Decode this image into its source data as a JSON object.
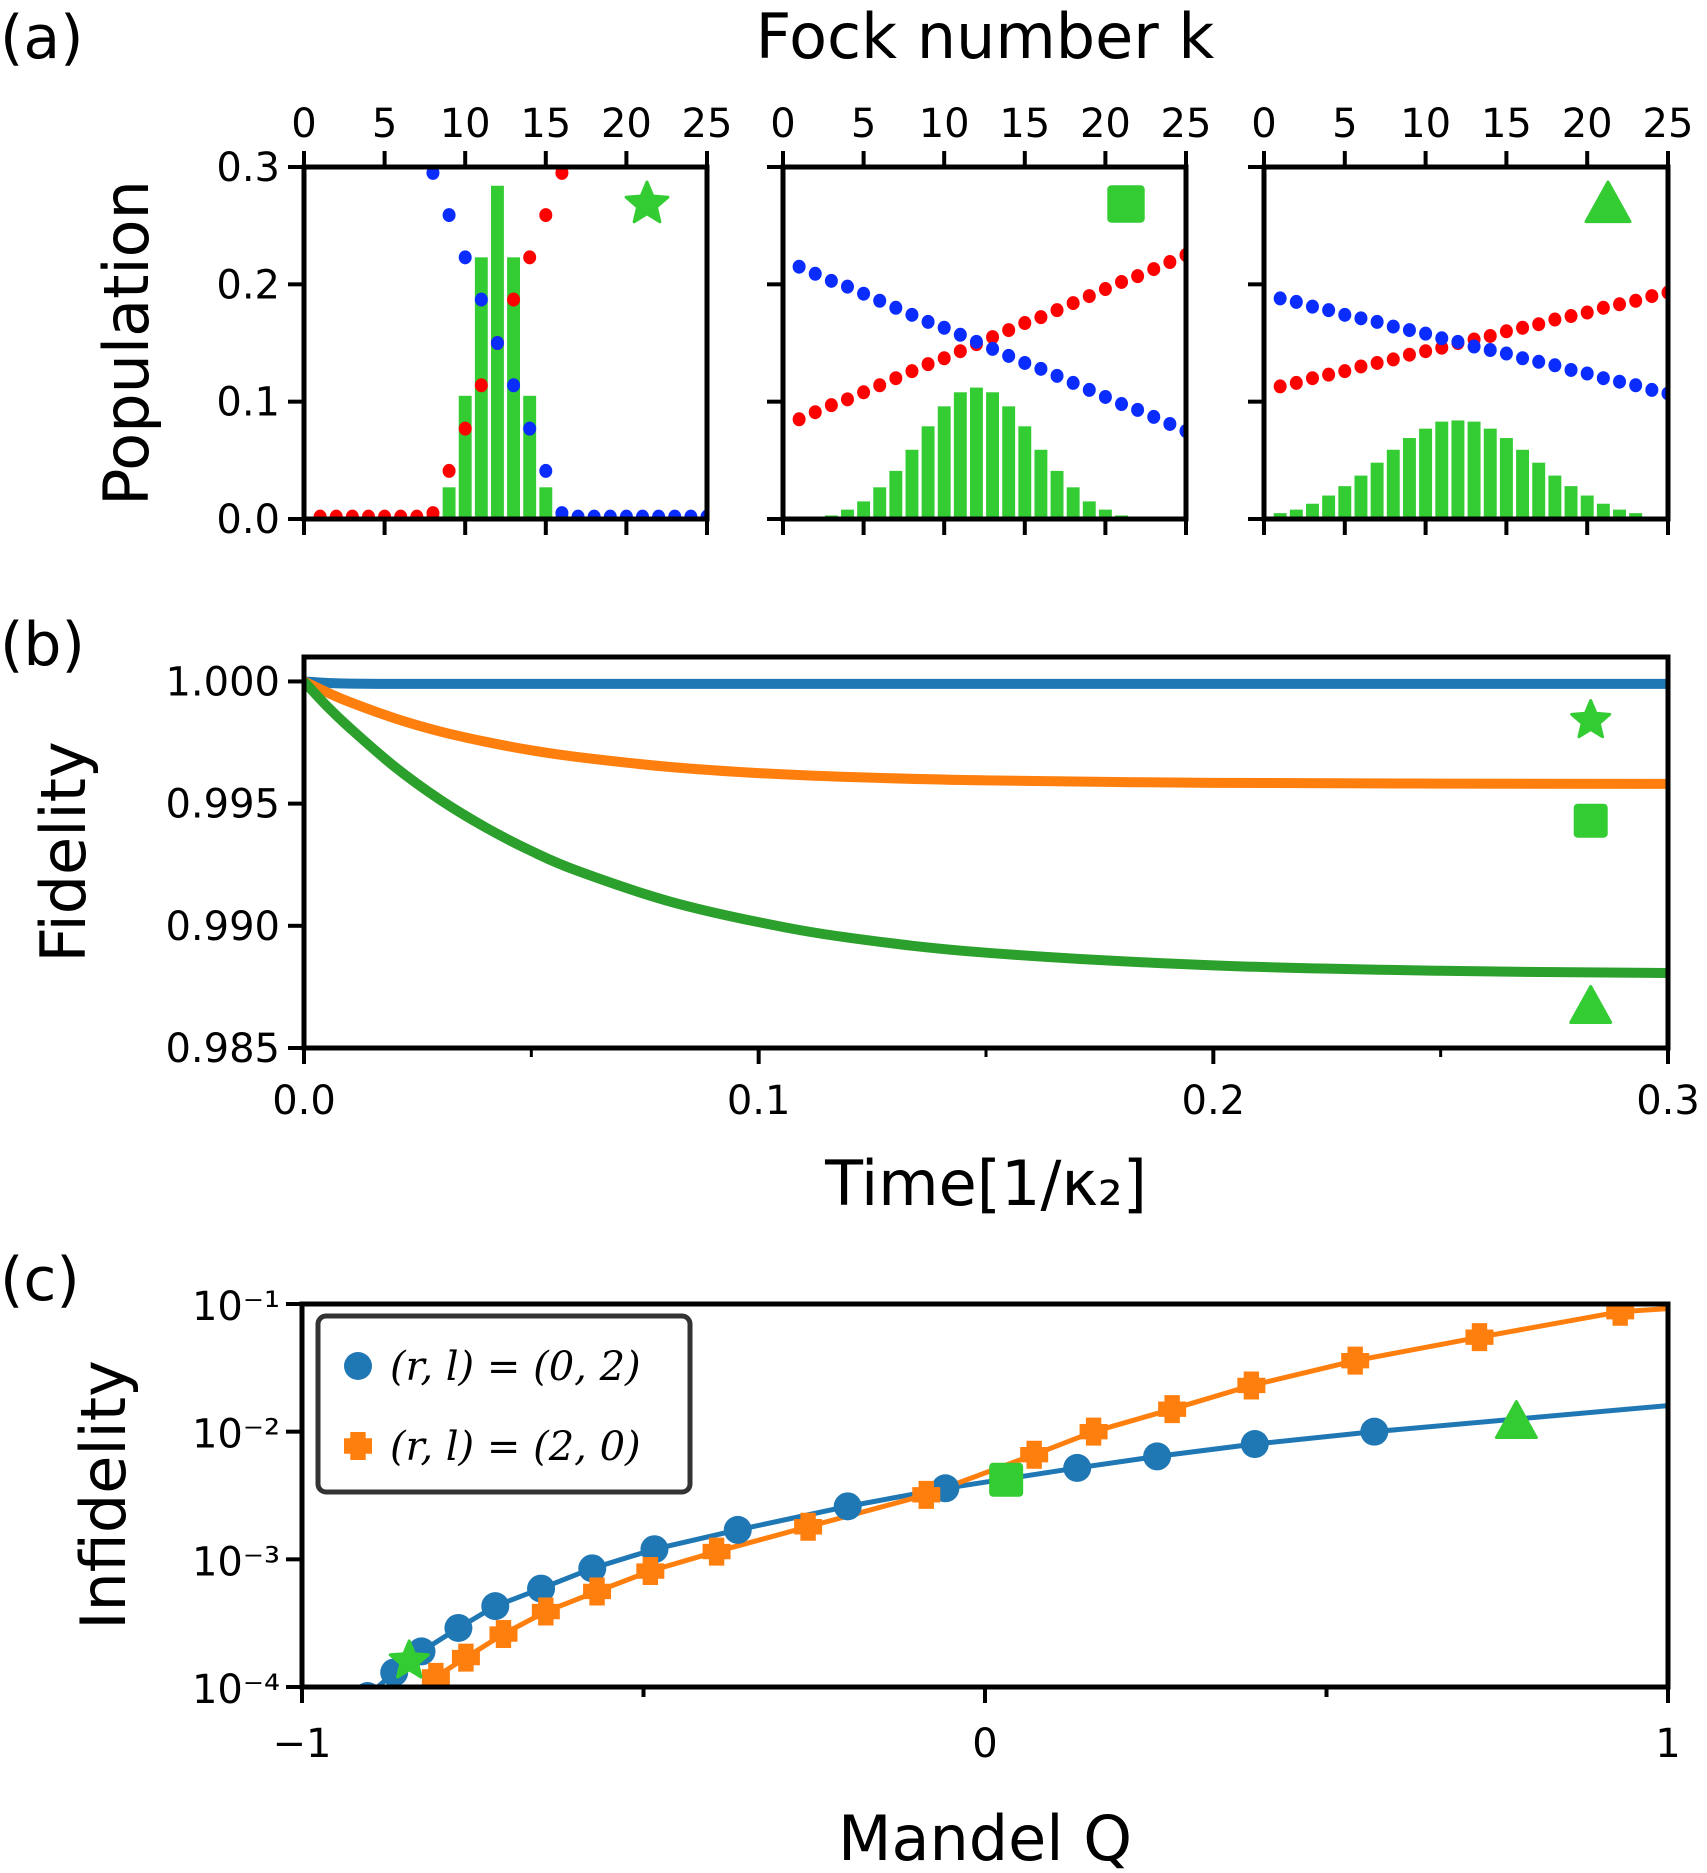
{
  "panel_labels": [
    "(a)",
    "(b)",
    "(c)"
  ],
  "colors": {
    "blue_dots": "#0a2cff",
    "red_dots": "#ff0000",
    "bars": "#33cc33",
    "marker_green": "#33cc33",
    "c0": "#1f77b4",
    "c1": "#ff7f0e",
    "c2": "#2ca02c"
  },
  "chart_data": [
    {
      "id": "a",
      "type": "bar+scatter",
      "xlabel": "Fock number k",
      "ylabel": "Population",
      "xlim": [
        0,
        25
      ],
      "ylim": [
        0,
        0.3
      ],
      "xticks": [
        0,
        5,
        10,
        15,
        20,
        25
      ],
      "yticks": [
        "0.0",
        "0.1",
        "0.2",
        "0.3"
      ],
      "xaxis_position": "top",
      "subplots": [
        {
          "marker": "star",
          "bars_k": [
            0,
            1,
            2,
            3,
            4,
            5,
            6,
            7,
            8,
            9,
            10,
            11,
            12,
            13,
            14,
            15,
            16,
            17,
            18,
            19,
            20,
            21,
            22,
            23,
            24,
            25
          ],
          "bars": [
            0,
            0,
            0,
            0,
            0,
            0,
            0,
            0,
            0.003,
            0.027,
            0.105,
            0.223,
            0.284,
            0.223,
            0.105,
            0.027,
            0.003,
            0,
            0,
            0,
            0,
            0,
            0,
            0,
            0,
            0
          ],
          "dots_k": [
            1,
            2,
            3,
            4,
            5,
            6,
            7,
            8,
            9,
            10,
            11,
            12,
            13,
            14,
            15,
            16,
            17,
            18,
            19,
            20,
            21,
            22,
            23,
            24,
            25
          ],
          "blue": [
            null,
            null,
            null,
            null,
            null,
            null,
            null,
            0.295,
            0.259,
            0.223,
            0.187,
            0.15,
            0.114,
            0.077,
            0.041,
            0.005,
            0.002,
            0.002,
            0.002,
            0.002,
            0.002,
            0.002,
            0.002,
            0.002,
            0.002
          ],
          "red": [
            0.002,
            0.002,
            0.002,
            0.002,
            0.002,
            0.002,
            0.002,
            0.005,
            0.041,
            0.077,
            0.114,
            0.15,
            0.187,
            0.223,
            0.259,
            0.295,
            null,
            null,
            null,
            null,
            null,
            null,
            null,
            null,
            null
          ]
        },
        {
          "marker": "square",
          "bars_k": [
            0,
            1,
            2,
            3,
            4,
            5,
            6,
            7,
            8,
            9,
            10,
            11,
            12,
            13,
            14,
            15,
            16,
            17,
            18,
            19,
            20,
            21,
            22,
            23,
            24,
            25
          ],
          "bars": [
            0,
            0,
            0,
            0.003,
            0.008,
            0.015,
            0.027,
            0.041,
            0.059,
            0.079,
            0.096,
            0.108,
            0.112,
            0.108,
            0.096,
            0.079,
            0.059,
            0.041,
            0.027,
            0.015,
            0.008,
            0.003,
            0.001,
            0,
            0,
            0
          ],
          "dots_k": [
            1,
            2,
            3,
            4,
            5,
            6,
            7,
            8,
            9,
            10,
            11,
            12,
            13,
            14,
            15,
            16,
            17,
            18,
            19,
            20,
            21,
            22,
            23,
            24,
            25
          ],
          "blue": [
            0.215,
            0.209,
            0.203,
            0.198,
            0.192,
            0.186,
            0.18,
            0.174,
            0.168,
            0.163,
            0.157,
            0.151,
            0.145,
            0.139,
            0.133,
            0.128,
            0.122,
            0.116,
            0.11,
            0.104,
            0.098,
            0.093,
            0.087,
            0.081,
            0.075
          ],
          "red": [
            0.085,
            0.091,
            0.097,
            0.102,
            0.108,
            0.114,
            0.12,
            0.126,
            0.132,
            0.137,
            0.143,
            0.149,
            0.155,
            0.161,
            0.167,
            0.172,
            0.178,
            0.184,
            0.19,
            0.196,
            0.202,
            0.207,
            0.213,
            0.219,
            0.225
          ]
        },
        {
          "marker": "triangle",
          "bars_k": [
            0,
            1,
            2,
            3,
            4,
            5,
            6,
            7,
            8,
            9,
            10,
            11,
            12,
            13,
            14,
            15,
            16,
            17,
            18,
            19,
            20,
            21,
            22,
            23,
            24,
            25
          ],
          "bars": [
            0.002,
            0.005,
            0.008,
            0.013,
            0.02,
            0.028,
            0.037,
            0.048,
            0.059,
            0.069,
            0.077,
            0.083,
            0.084,
            0.083,
            0.077,
            0.069,
            0.059,
            0.048,
            0.037,
            0.028,
            0.02,
            0.013,
            0.008,
            0.005,
            0.002,
            0.001
          ],
          "dots_k": [
            1,
            2,
            3,
            4,
            5,
            6,
            7,
            8,
            9,
            10,
            11,
            12,
            13,
            14,
            15,
            16,
            17,
            18,
            19,
            20,
            21,
            22,
            23,
            24,
            25
          ],
          "blue": [
            0.188,
            0.185,
            0.181,
            0.178,
            0.174,
            0.171,
            0.168,
            0.164,
            0.161,
            0.158,
            0.154,
            0.151,
            0.147,
            0.144,
            0.141,
            0.137,
            0.134,
            0.131,
            0.127,
            0.124,
            0.12,
            0.117,
            0.114,
            0.11,
            0.107
          ],
          "red": [
            0.113,
            0.116,
            0.12,
            0.123,
            0.126,
            0.13,
            0.133,
            0.136,
            0.14,
            0.143,
            0.146,
            0.15,
            0.153,
            0.156,
            0.16,
            0.163,
            0.166,
            0.17,
            0.173,
            0.176,
            0.18,
            0.183,
            0.186,
            0.19,
            0.193
          ]
        }
      ]
    },
    {
      "id": "b",
      "type": "line",
      "xlabel": "Time[1/κ₂]",
      "ylabel": "Fidelity",
      "xlim": [
        0,
        0.3
      ],
      "ylim": [
        0.985,
        1.001
      ],
      "xticks": [
        "0.0",
        "0.1",
        "0.2",
        "0.3"
      ],
      "yticks": [
        "0.985",
        "0.990",
        "0.995",
        "1.000"
      ],
      "t": [
        0,
        0.005,
        0.01,
        0.02,
        0.03,
        0.04,
        0.05,
        0.06,
        0.08,
        0.1,
        0.12,
        0.15,
        0.2,
        0.25,
        0.3
      ],
      "series": [
        {
          "color": "#1f77b4",
          "values": [
            1,
            0.99994,
            0.99991,
            0.9999,
            0.9999,
            0.9999,
            0.9999,
            0.9999,
            0.9999,
            0.9999,
            0.9999,
            0.9999,
            0.9999,
            0.9999,
            0.9999
          ]
        },
        {
          "color": "#ff7f0e",
          "values": [
            1,
            0.99956,
            0.99916,
            0.99849,
            0.99795,
            0.99753,
            0.99718,
            0.99691,
            0.99651,
            0.99625,
            0.99609,
            0.99595,
            0.99585,
            0.99582,
            0.99581
          ]
        },
        {
          "color": "#2ca02c",
          "values": [
            1,
            0.999,
            0.99811,
            0.9965,
            0.99515,
            0.99402,
            0.99306,
            0.99226,
            0.99102,
            0.99015,
            0.98951,
            0.9889,
            0.98838,
            0.98816,
            0.98807
          ]
        }
      ],
      "markers": [
        {
          "shape": "star",
          "x": 0.283,
          "y": 0.9984
        },
        {
          "shape": "square",
          "x": 0.283,
          "y": 0.9943
        },
        {
          "shape": "triangle",
          "x": 0.283,
          "y": 0.9867
        }
      ]
    },
    {
      "id": "c",
      "type": "line+scatter",
      "xlabel": "Mandel Q",
      "ylabel": "Infidelity",
      "yscale": "log",
      "xlim": [
        -1,
        1
      ],
      "ylim": [
        0.0001,
        0.1
      ],
      "xticks": [
        "−1",
        "0",
        "1"
      ],
      "yticks": [
        "10⁻⁴",
        "10⁻³",
        "10⁻²",
        "10⁻¹"
      ],
      "legend_position": "top-left",
      "series": [
        {
          "name": "(r, l) = (0, 2)",
          "color": "#1f77b4",
          "marker": "circle",
          "x": [
            -0.904,
            -0.865,
            -0.825,
            -0.771,
            -0.717,
            -0.65,
            -0.575,
            -0.484,
            -0.362,
            -0.201,
            -0.058,
            0.135,
            0.252,
            0.395,
            0.57
          ],
          "y": [
            8.5e-05,
            0.00013,
            0.00019,
            0.00029,
            0.00043,
            0.00059,
            0.00085,
            0.0012,
            0.0017,
            0.0026,
            0.0036,
            0.0052,
            0.0064,
            0.008,
            0.01
          ],
          "line_end": [
            1,
            0.016
          ]
        },
        {
          "name": "(r, l) = (2, 0)",
          "color": "#ff7f0e",
          "marker": "plus",
          "x": [
            -0.804,
            -0.76,
            -0.705,
            -0.643,
            -0.568,
            -0.49,
            -0.393,
            -0.259,
            -0.086,
            0.072,
            0.159,
            0.274,
            0.39,
            0.542,
            0.724,
            0.93
          ],
          "y": [
            0.00012,
            0.00017,
            0.00026,
            0.00039,
            0.00056,
            0.00081,
            0.00115,
            0.0018,
            0.0032,
            0.0066,
            0.01,
            0.015,
            0.023,
            0.036,
            0.055,
            0.087
          ],
          "line_end": [
            1,
            0.092
          ]
        }
      ],
      "markers": [
        {
          "shape": "star",
          "x": -0.843,
          "y": 0.00016
        },
        {
          "shape": "square",
          "x": 0.031,
          "y": 0.0042
        },
        {
          "shape": "triangle",
          "x": 0.778,
          "y": 0.012
        }
      ]
    }
  ]
}
